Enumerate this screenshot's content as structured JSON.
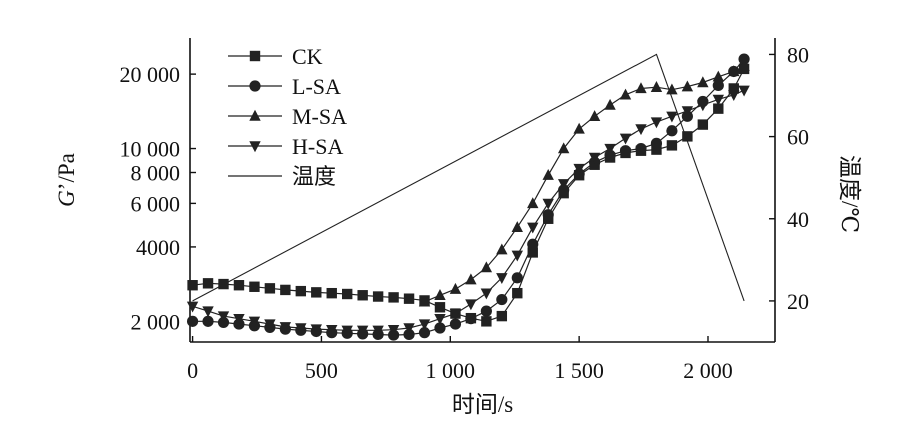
{
  "chart_data": {
    "type": "line",
    "x": {
      "label": "时间/s",
      "range": [
        -10,
        2260
      ],
      "ticks": [
        {
          "value": 0,
          "label": "0"
        },
        {
          "value": 500,
          "label": "500"
        },
        {
          "value": 1000,
          "label": "1 000"
        },
        {
          "value": 1500,
          "label": "1 500"
        },
        {
          "value": 2000,
          "label": "2 000"
        }
      ]
    },
    "y_left": {
      "label_italic": "G",
      "label_rest": "’/Pa",
      "scale": "log",
      "range": [
        1650,
        28000
      ],
      "ticks": [
        {
          "value": 2000,
          "label": "2 000"
        },
        {
          "value": 4000,
          "label": "4000"
        },
        {
          "value": 6000,
          "label": "6 000"
        },
        {
          "value": 8000,
          "label": "8 000"
        },
        {
          "value": 10000,
          "label": "10 000"
        },
        {
          "value": 20000,
          "label": "20 000"
        }
      ]
    },
    "y_right": {
      "label": "温度/℃",
      "scale": "linear",
      "range": [
        10,
        84
      ],
      "ticks": [
        {
          "value": 20,
          "label": "20"
        },
        {
          "value": 40,
          "label": "40"
        },
        {
          "value": 60,
          "label": "60"
        },
        {
          "value": 80,
          "label": "80"
        }
      ]
    },
    "legend": {
      "position": "top-left",
      "entries": [
        {
          "label": "CK",
          "marker": "square"
        },
        {
          "label": "L-SA",
          "marker": "circle"
        },
        {
          "label": "M-SA",
          "marker": "triangle-up"
        },
        {
          "label": "H-SA",
          "marker": "triangle-down"
        },
        {
          "label": "温度",
          "marker": "none"
        }
      ]
    },
    "series": [
      {
        "name": "CK",
        "marker": "square",
        "axis": "left",
        "points": [
          [
            0,
            2800
          ],
          [
            60,
            2850
          ],
          [
            120,
            2830
          ],
          [
            180,
            2800
          ],
          [
            240,
            2760
          ],
          [
            300,
            2720
          ],
          [
            360,
            2680
          ],
          [
            420,
            2650
          ],
          [
            480,
            2620
          ],
          [
            540,
            2600
          ],
          [
            600,
            2580
          ],
          [
            660,
            2550
          ],
          [
            720,
            2520
          ],
          [
            780,
            2500
          ],
          [
            840,
            2470
          ],
          [
            900,
            2430
          ],
          [
            960,
            2280
          ],
          [
            1020,
            2150
          ],
          [
            1080,
            2060
          ],
          [
            1140,
            2000
          ],
          [
            1200,
            2100
          ],
          [
            1260,
            2600
          ],
          [
            1320,
            3800
          ],
          [
            1380,
            5200
          ],
          [
            1440,
            6600
          ],
          [
            1500,
            7800
          ],
          [
            1560,
            8600
          ],
          [
            1620,
            9200
          ],
          [
            1680,
            9600
          ],
          [
            1740,
            9800
          ],
          [
            1800,
            9900
          ],
          [
            1860,
            10300
          ],
          [
            1920,
            11200
          ],
          [
            1980,
            12500
          ],
          [
            2040,
            14500
          ],
          [
            2100,
            17500
          ],
          [
            2140,
            21000
          ]
        ]
      },
      {
        "name": "L-SA",
        "marker": "circle",
        "axis": "left",
        "points": [
          [
            0,
            2000
          ],
          [
            60,
            2000
          ],
          [
            120,
            1980
          ],
          [
            180,
            1950
          ],
          [
            240,
            1920
          ],
          [
            300,
            1890
          ],
          [
            360,
            1860
          ],
          [
            420,
            1840
          ],
          [
            480,
            1820
          ],
          [
            540,
            1800
          ],
          [
            600,
            1790
          ],
          [
            660,
            1780
          ],
          [
            720,
            1770
          ],
          [
            780,
            1760
          ],
          [
            840,
            1770
          ],
          [
            900,
            1800
          ],
          [
            960,
            1880
          ],
          [
            1020,
            1950
          ],
          [
            1080,
            2050
          ],
          [
            1140,
            2200
          ],
          [
            1200,
            2450
          ],
          [
            1260,
            3000
          ],
          [
            1320,
            4100
          ],
          [
            1380,
            5400
          ],
          [
            1440,
            6800
          ],
          [
            1500,
            7900
          ],
          [
            1560,
            8800
          ],
          [
            1620,
            9400
          ],
          [
            1680,
            9800
          ],
          [
            1740,
            10000
          ],
          [
            1800,
            10500
          ],
          [
            1860,
            11800
          ],
          [
            1920,
            13500
          ],
          [
            1980,
            15500
          ],
          [
            2040,
            18000
          ],
          [
            2100,
            20500
          ],
          [
            2140,
            23000
          ]
        ]
      },
      {
        "name": "M-SA",
        "marker": "triangle-up",
        "axis": "left",
        "points": [
          [
            900,
            2400
          ],
          [
            960,
            2550
          ],
          [
            1020,
            2700
          ],
          [
            1080,
            2950
          ],
          [
            1140,
            3300
          ],
          [
            1200,
            3900
          ],
          [
            1260,
            4800
          ],
          [
            1320,
            6000
          ],
          [
            1380,
            7800
          ],
          [
            1440,
            10000
          ],
          [
            1500,
            12000
          ],
          [
            1560,
            13500
          ],
          [
            1620,
            15000
          ],
          [
            1680,
            16500
          ],
          [
            1740,
            17500
          ],
          [
            1800,
            17700
          ],
          [
            1860,
            17300
          ],
          [
            1920,
            17800
          ],
          [
            1980,
            18500
          ],
          [
            2040,
            19500
          ],
          [
            2100,
            20500
          ],
          [
            2140,
            21500
          ]
        ]
      },
      {
        "name": "H-SA",
        "marker": "triangle-down",
        "axis": "left",
        "points": [
          [
            0,
            2300
          ],
          [
            60,
            2200
          ],
          [
            120,
            2100
          ],
          [
            180,
            2050
          ],
          [
            240,
            2000
          ],
          [
            300,
            1950
          ],
          [
            360,
            1900
          ],
          [
            420,
            1880
          ],
          [
            480,
            1860
          ],
          [
            540,
            1850
          ],
          [
            600,
            1840
          ],
          [
            660,
            1840
          ],
          [
            720,
            1840
          ],
          [
            780,
            1850
          ],
          [
            840,
            1880
          ],
          [
            900,
            1950
          ],
          [
            960,
            2050
          ],
          [
            1020,
            2150
          ],
          [
            1080,
            2350
          ],
          [
            1140,
            2600
          ],
          [
            1200,
            3000
          ],
          [
            1260,
            3700
          ],
          [
            1320,
            4800
          ],
          [
            1380,
            6000
          ],
          [
            1440,
            7200
          ],
          [
            1500,
            8300
          ],
          [
            1560,
            9200
          ],
          [
            1620,
            10000
          ],
          [
            1680,
            11000
          ],
          [
            1740,
            12000
          ],
          [
            1800,
            12800
          ],
          [
            1860,
            13500
          ],
          [
            1920,
            14200
          ],
          [
            1980,
            15000
          ],
          [
            2040,
            15800
          ],
          [
            2100,
            16500
          ],
          [
            2140,
            17200
          ]
        ]
      },
      {
        "name": "温度",
        "marker": "none",
        "axis": "right",
        "points": [
          [
            0,
            20
          ],
          [
            1800,
            80
          ],
          [
            2140,
            20
          ]
        ]
      }
    ]
  }
}
